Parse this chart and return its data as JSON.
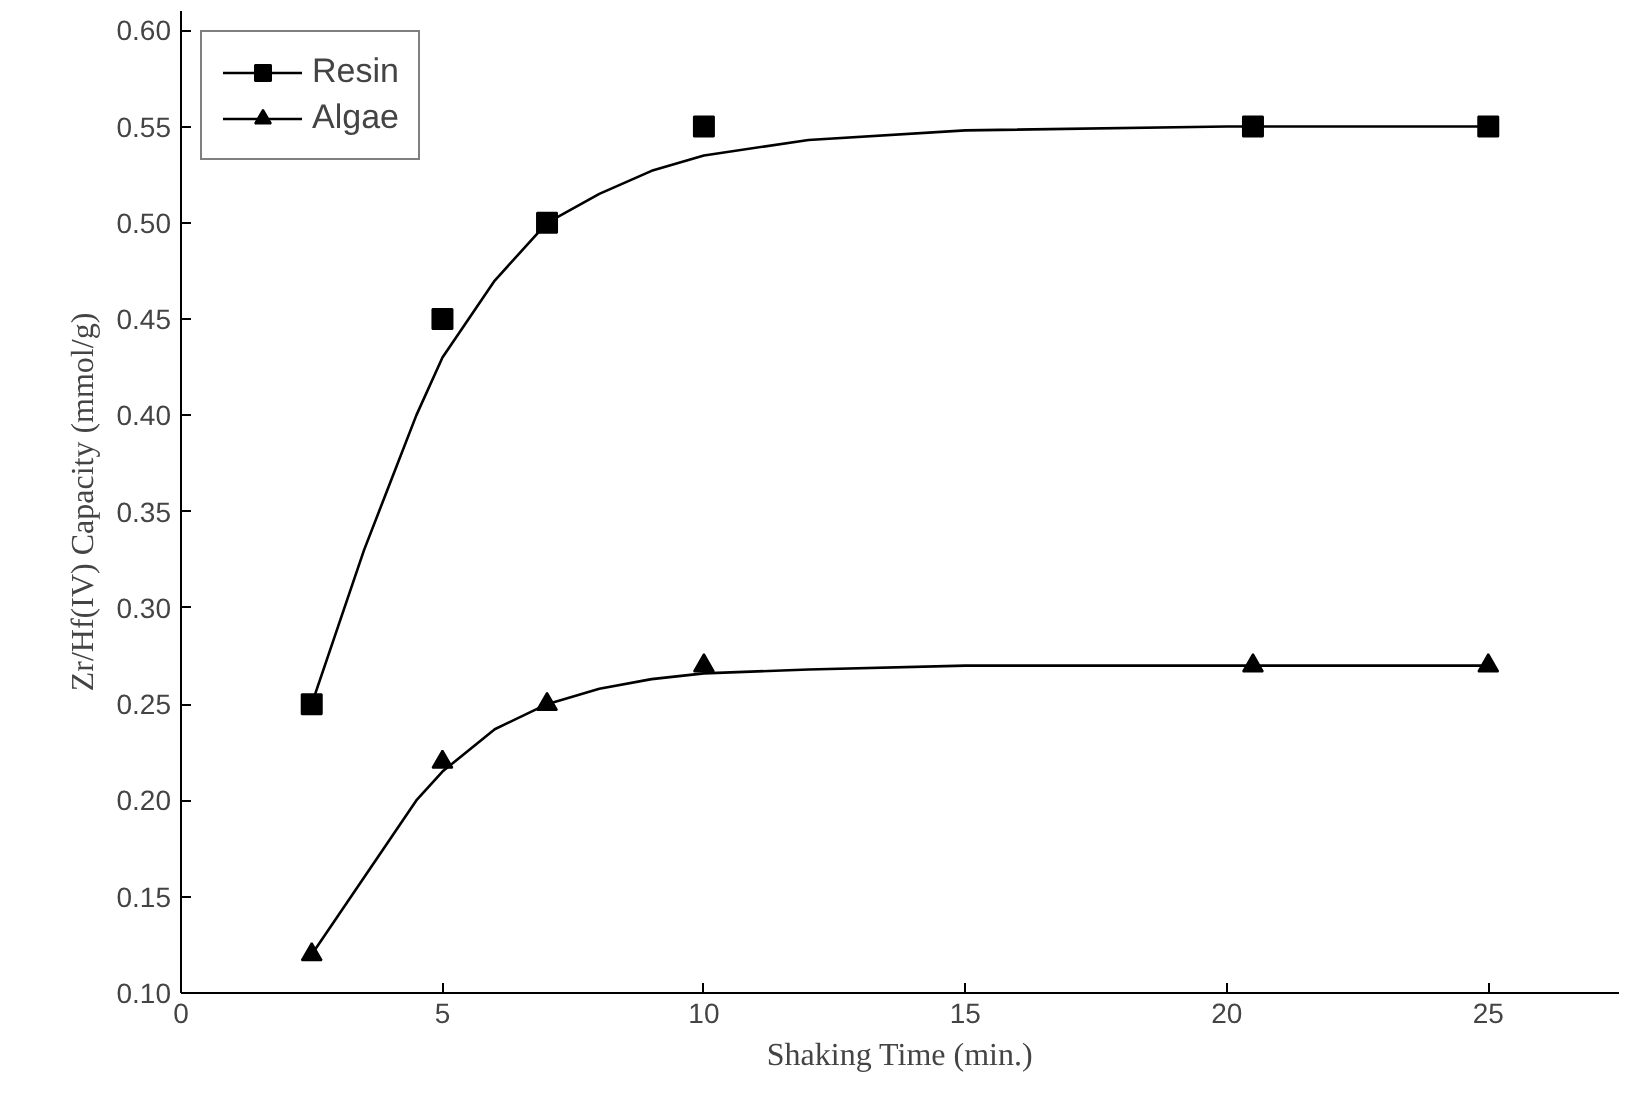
{
  "chart_data": {
    "type": "scatter",
    "xlabel": "Shaking Time (min.)",
    "ylabel": "Zr/Hf(IV) Capacity (mmol/g)",
    "xlim": [
      0,
      27.5
    ],
    "ylim": [
      0.1,
      0.61
    ],
    "xticks": [
      0,
      5,
      10,
      15,
      20,
      25
    ],
    "yticks": [
      {
        "value": 0.1,
        "label": "0.10"
      },
      0.15,
      {
        "value": 0.2,
        "label": "0.20"
      },
      0.25,
      {
        "value": 0.3,
        "label": "0.30"
      },
      0.35,
      {
        "value": 0.4,
        "label": "0.40"
      },
      0.45,
      {
        "value": 0.5,
        "label": "0.50"
      },
      0.55,
      {
        "value": 0.6,
        "label": "0.60"
      }
    ],
    "grid": false,
    "legend": "top left",
    "series": [
      {
        "name": "Resin",
        "color": "#000000",
        "marker": "square",
        "x": [
          2.5,
          5,
          7,
          10,
          20.5,
          25
        ],
        "values": [
          0.25,
          0.45,
          0.5,
          0.55,
          0.55,
          0.55
        ]
      },
      {
        "name": "Algae",
        "color": "#000000",
        "marker": "triangle",
        "x": [
          2.5,
          5,
          7,
          10,
          20.5,
          25
        ],
        "values": [
          0.12,
          0.22,
          0.25,
          0.27,
          0.27,
          0.27
        ]
      },
      {
        "type": "line",
        "color": "#000000",
        "line_style": "solid",
        "x": [
          2.5,
          3,
          3.5,
          4,
          4.5,
          5,
          6,
          7,
          8,
          9,
          10,
          12,
          15,
          20,
          25
        ],
        "values": [
          0.25,
          0.29,
          0.33,
          0.365,
          0.4,
          0.43,
          0.47,
          0.5,
          0.515,
          0.527,
          0.535,
          0.543,
          0.548,
          0.55,
          0.55
        ]
      },
      {
        "type": "line",
        "color": "#000000",
        "line_style": "solid",
        "x": [
          2.5,
          3,
          3.5,
          4,
          4.5,
          5,
          6,
          7,
          8,
          9,
          10,
          12,
          15,
          20,
          25
        ],
        "values": [
          0.12,
          0.14,
          0.16,
          0.18,
          0.2,
          0.215,
          0.237,
          0.25,
          0.258,
          0.263,
          0.266,
          0.268,
          0.27,
          0.27,
          0.27
        ]
      }
    ]
  }
}
